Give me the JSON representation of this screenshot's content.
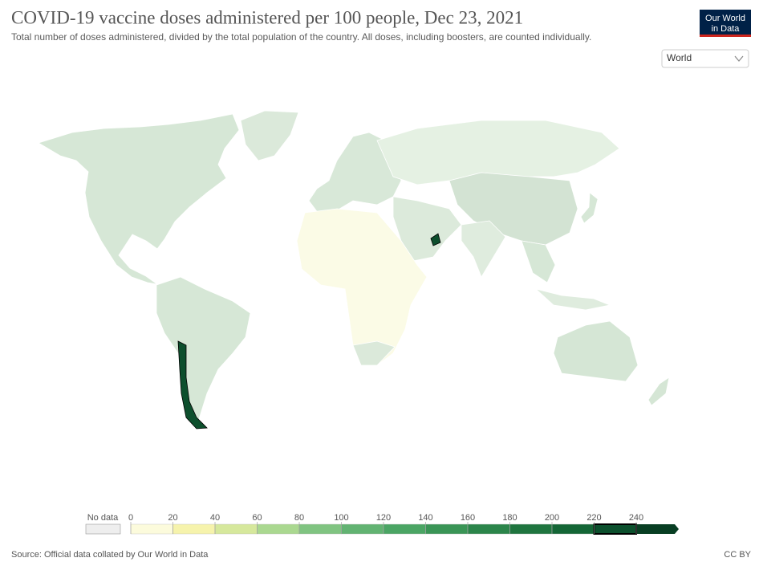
{
  "header": {
    "title": "COVID-19 vaccine doses administered per 100 people, Dec 23, 2021",
    "subtitle": "Total number of doses administered, divided by the total population of the country. All doses, including boosters, are counted individually.",
    "logo": [
      "Our World",
      "in Data"
    ],
    "region_selector": "World"
  },
  "legend": {
    "no_data": "No data",
    "ticks": [
      0,
      20,
      40,
      60,
      80,
      100,
      120,
      140,
      160,
      180,
      200,
      220,
      240
    ],
    "colors": [
      "#fcfbdc",
      "#f6f3ac",
      "#d6e89c",
      "#aad890",
      "#80c481",
      "#62b372",
      "#4ba564",
      "#3a9556",
      "#2b854a",
      "#1f753f",
      "#146636",
      "#0c502d",
      "#083e23"
    ],
    "highlighted_bin": 11
  },
  "footer": {
    "source": "Source: Official data collated by Our World in Data",
    "license": "CC BY"
  }
}
